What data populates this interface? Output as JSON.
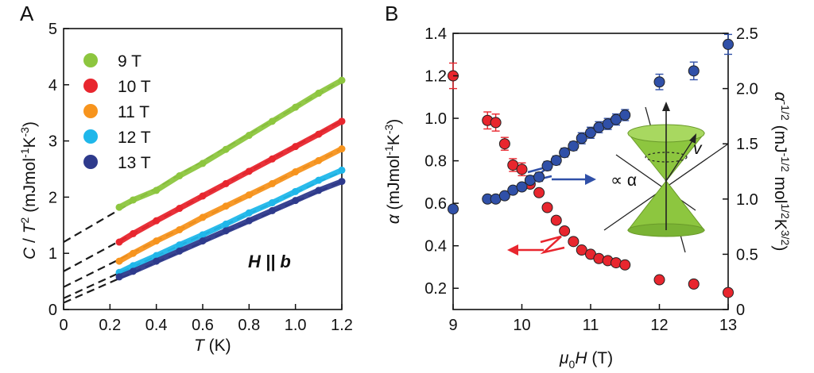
{
  "chart_data": [
    {
      "type": "line",
      "panel_label": "A",
      "xlabel": "T (K)",
      "ylabel": "C / T^2 (mJmol^-1K^-3)",
      "xlim": [
        0,
        1.2
      ],
      "ylim": [
        0,
        5
      ],
      "x_ticks": [
        "0",
        "0.2",
        "0.4",
        "0.6",
        "0.8",
        "1.0",
        "1.2"
      ],
      "y_ticks": [
        "0",
        "1",
        "2",
        "3",
        "4",
        "5"
      ],
      "annotation": "H || b",
      "legend_position": "top-left",
      "series": [
        {
          "name": "9 T",
          "color": "#8dc63f",
          "fit_intercept": 1.2,
          "fit_slope": 2.4,
          "data_x": [
            0.24,
            0.3,
            0.4,
            0.5,
            0.6,
            0.7,
            0.8,
            0.9,
            1.0,
            1.1,
            1.2
          ],
          "data_y": [
            1.82,
            1.95,
            2.12,
            2.38,
            2.6,
            2.85,
            3.1,
            3.35,
            3.6,
            3.85,
            4.08
          ]
        },
        {
          "name": "10 T",
          "color": "#e8262e",
          "fit_intercept": 0.68,
          "fit_slope": 2.23,
          "data_x": [
            0.24,
            0.3,
            0.4,
            0.5,
            0.6,
            0.7,
            0.8,
            0.9,
            1.0,
            1.1,
            1.2
          ],
          "data_y": [
            1.2,
            1.35,
            1.58,
            1.8,
            2.02,
            2.24,
            2.46,
            2.68,
            2.9,
            3.12,
            3.35
          ]
        },
        {
          "name": "11 T",
          "color": "#f7941d",
          "fit_intercept": 0.4,
          "fit_slope": 2.05,
          "data_x": [
            0.24,
            0.3,
            0.4,
            0.5,
            0.6,
            0.7,
            0.8,
            0.9,
            1.0,
            1.1,
            1.2
          ],
          "data_y": [
            0.86,
            1.0,
            1.22,
            1.42,
            1.64,
            1.84,
            2.04,
            2.24,
            2.45,
            2.65,
            2.86
          ]
        },
        {
          "name": "12 T",
          "color": "#1fb7ea",
          "fit_intercept": 0.2,
          "fit_slope": 1.88,
          "data_x": [
            0.24,
            0.3,
            0.4,
            0.5,
            0.6,
            0.7,
            0.8,
            0.9,
            1.0,
            1.1,
            1.2
          ],
          "data_y": [
            0.66,
            0.78,
            0.96,
            1.15,
            1.33,
            1.52,
            1.72,
            1.9,
            2.1,
            2.3,
            2.48
          ]
        },
        {
          "name": "13 T",
          "color": "#2e3a8c",
          "fit_intercept": 0.12,
          "fit_slope": 1.8,
          "data_x": [
            0.24,
            0.3,
            0.4,
            0.5,
            0.6,
            0.7,
            0.8,
            0.9,
            1.0,
            1.1,
            1.2
          ],
          "data_y": [
            0.58,
            0.68,
            0.86,
            1.04,
            1.22,
            1.4,
            1.58,
            1.76,
            1.94,
            2.12,
            2.28
          ]
        }
      ]
    },
    {
      "type": "scatter",
      "panel_label": "B",
      "xlabel": "μ0H (T)",
      "ylabel_left": "α (mJmol^-1K^-3)",
      "ylabel_right": "α^-1/2 (mJ^-1/2 mol^1/2 K^3/2)",
      "xlim": [
        9,
        13
      ],
      "ylim_left": [
        0.1,
        1.4
      ],
      "ylim_right": [
        0,
        2.5
      ],
      "x_ticks": [
        "9",
        "10",
        "11",
        "12",
        "13"
      ],
      "y_ticks_left": [
        "0.2",
        "0.4",
        "0.6",
        "0.8",
        "1.0",
        "1.2",
        "1.4"
      ],
      "y_ticks_right": [
        "0",
        "0.5",
        "1.0",
        "1.5",
        "2.0",
        "2.5"
      ],
      "inset_labels": {
        "velocity": "v",
        "proportional": "∝ α"
      },
      "series": [
        {
          "name": "α",
          "axis": "left",
          "color": "#e8262e",
          "x": [
            9.0,
            9.5,
            9.62,
            9.75,
            9.87,
            10.0,
            10.12,
            10.25,
            10.37,
            10.5,
            10.62,
            10.75,
            10.87,
            11.0,
            11.12,
            11.25,
            11.37,
            11.5,
            12.0,
            12.5,
            13.0
          ],
          "y": [
            1.2,
            0.99,
            0.98,
            0.88,
            0.78,
            0.76,
            0.69,
            0.65,
            0.58,
            0.52,
            0.47,
            0.42,
            0.38,
            0.36,
            0.34,
            0.33,
            0.32,
            0.31,
            0.24,
            0.22,
            0.18
          ],
          "err": [
            0.06,
            0.04,
            0.04,
            0.03,
            0.03,
            0.03,
            0,
            0,
            0,
            0,
            0,
            0,
            0,
            0,
            0,
            0,
            0,
            0,
            0,
            0,
            0
          ]
        },
        {
          "name": "α^-1/2",
          "axis": "right",
          "color": "#3050a8",
          "x": [
            9.0,
            9.5,
            9.62,
            9.75,
            9.87,
            10.0,
            10.12,
            10.25,
            10.37,
            10.5,
            10.62,
            10.75,
            10.87,
            11.0,
            11.12,
            11.25,
            11.37,
            11.5,
            12.0,
            12.5,
            13.0
          ],
          "y": [
            0.91,
            1.0,
            1.0,
            1.03,
            1.08,
            1.11,
            1.17,
            1.2,
            1.3,
            1.35,
            1.42,
            1.48,
            1.55,
            1.6,
            1.65,
            1.68,
            1.72,
            1.76,
            2.06,
            2.16,
            2.4
          ],
          "err": [
            0,
            0,
            0,
            0,
            0,
            0,
            0.04,
            0.04,
            0.04,
            0.04,
            0.04,
            0.04,
            0.05,
            0.05,
            0.05,
            0.05,
            0.05,
            0.05,
            0.07,
            0.08,
            0.09
          ]
        }
      ]
    }
  ],
  "colors": {
    "fit_line": "#1a1a1a",
    "cone": "#8dc63f",
    "arrow_red": "#e8262e",
    "arrow_blue": "#3050a8"
  }
}
